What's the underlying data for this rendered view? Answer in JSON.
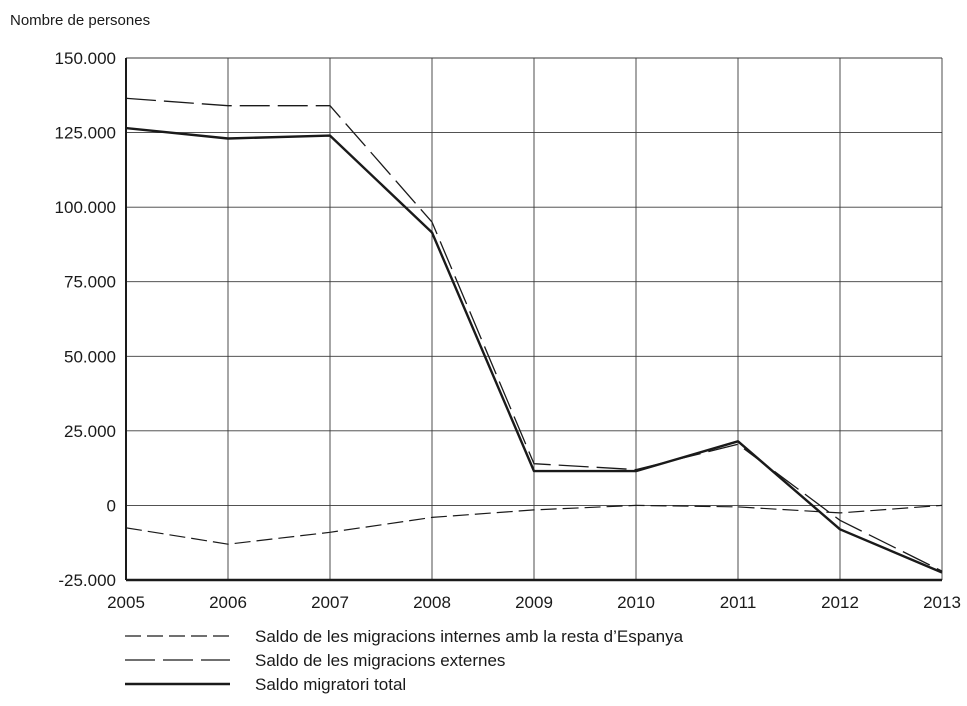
{
  "chart_data": {
    "type": "line",
    "title": "",
    "xlabel": "",
    "ylabel": "Nombre de persones",
    "x": [
      "2005",
      "2006",
      "2007",
      "2008",
      "2009",
      "2010",
      "2011",
      "2012",
      "2013"
    ],
    "ylim": [
      -25000,
      150000
    ],
    "yticks": [
      -25000,
      0,
      25000,
      50000,
      75000,
      100000,
      125000,
      150000
    ],
    "ytick_labels": [
      "-25.000",
      "0",
      "25.000",
      "50.000",
      "75.000",
      "100.000",
      "125.000",
      "150.000"
    ],
    "grid": true,
    "legend_position": "bottom",
    "series": [
      {
        "name": "Saldo de les migracions internes amb la resta d’Espanya",
        "style": "dashed-fine",
        "color": "#1a1a1a",
        "values": [
          -7500,
          -13000,
          -9000,
          -4000,
          -1500,
          0,
          -500,
          -2500,
          0
        ]
      },
      {
        "name": "Saldo de les migracions externes",
        "style": "dashed-long",
        "color": "#1a1a1a",
        "values": [
          136500,
          134000,
          134000,
          95000,
          14000,
          12000,
          20500,
          -5000,
          -22000
        ]
      },
      {
        "name": "Saldo migratori total",
        "style": "solid",
        "color": "#1a1a1a",
        "values": [
          126500,
          123000,
          124000,
          91500,
          11500,
          11500,
          21500,
          -8000,
          -22500
        ]
      }
    ]
  }
}
